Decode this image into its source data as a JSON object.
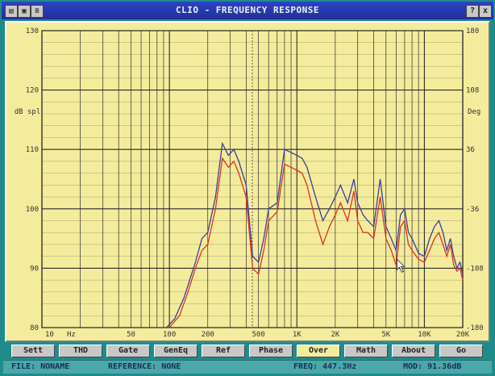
{
  "window": {
    "title": "CLIO - FREQUENCY RESPONSE",
    "title_icons": [
      "doc-icon",
      "save-icon",
      "menu-icon"
    ],
    "help_button": "?",
    "close_button": "x"
  },
  "toolbar": {
    "buttons": [
      {
        "label": "Sett",
        "active": false
      },
      {
        "label": "THD",
        "active": false
      },
      {
        "label": "Gate",
        "active": false
      },
      {
        "label": "GenEq",
        "active": false
      },
      {
        "label": "Ref",
        "active": false
      },
      {
        "label": "Phase",
        "active": false
      },
      {
        "label": "Over",
        "active": true
      },
      {
        "label": "Math",
        "active": false
      },
      {
        "label": "About",
        "active": false
      },
      {
        "label": "Go",
        "active": false
      }
    ]
  },
  "status": {
    "file": "FILE: NONAME",
    "reference": "REFERENCE: NONE",
    "freq": "FREQ: 447.3Hz",
    "mod": "MOD: 91.36dB"
  },
  "colors": {
    "plot_bg": "#f4ec9c",
    "grid": "#2a2a2a",
    "series_blue": "#3a3f9a",
    "series_red": "#e0301e",
    "cursor": "#555555"
  },
  "chart_data": {
    "type": "line",
    "xscale": "log",
    "xlim": [
      10,
      20000
    ],
    "ylim": [
      80,
      130
    ],
    "ylim_right": [
      -180,
      180
    ],
    "y_ticks": [
      "130",
      "120",
      "110",
      "100",
      "90",
      "80"
    ],
    "y_right_ticks": [
      "180",
      "108",
      "36",
      "-36",
      "-108",
      "-180"
    ],
    "x_ticks": [
      "10",
      "Hz",
      "50",
      "100",
      "200",
      "500",
      "1K",
      "2K",
      "5K",
      "10K",
      "20K"
    ],
    "ylabel": "dB spl",
    "ylabel_right": "Deg",
    "grid": true,
    "cursor_x": 447.3,
    "series": [
      {
        "color": "#3a3f9a",
        "x": [
          95,
          110,
          130,
          160,
          180,
          200,
          230,
          260,
          290,
          320,
          350,
          400,
          450,
          500,
          550,
          600,
          700,
          800,
          900,
          1000,
          1100,
          1200,
          1400,
          1600,
          1800,
          2000,
          2200,
          2500,
          2800,
          3000,
          3300,
          3600,
          4000,
          4500,
          5000,
          5500,
          6000,
          6500,
          7000,
          7500,
          8000,
          9000,
          10000,
          11000,
          12000,
          13000,
          14000,
          15000,
          16000,
          17000,
          18000,
          19000,
          20000
        ],
        "y": [
          80,
          81.5,
          85,
          91,
          95,
          96,
          102,
          111,
          109,
          110,
          108,
          104,
          92,
          91,
          95,
          100,
          101,
          110,
          109.5,
          109,
          108.5,
          107,
          102,
          98,
          100,
          102,
          104,
          101,
          105,
          101,
          99,
          98,
          97,
          105,
          97,
          95,
          93,
          99,
          100,
          96,
          95,
          92.5,
          92,
          95,
          97,
          98,
          96,
          93,
          95,
          92,
          90,
          91,
          89
        ]
      },
      {
        "color": "#e0301e",
        "x": [
          100,
          120,
          140,
          160,
          180,
          200,
          230,
          260,
          290,
          320,
          350,
          400,
          450,
          500,
          550,
          600,
          700,
          800,
          900,
          1000,
          1100,
          1200,
          1400,
          1600,
          1800,
          2000,
          2200,
          2500,
          2800,
          3000,
          3300,
          3600,
          4000,
          4500,
          5000,
          5500,
          6000,
          6500,
          7000,
          7500,
          8000,
          9000,
          10000,
          11000,
          12000,
          13000,
          14000,
          15000,
          16000,
          17000,
          18000,
          19000,
          20000
        ],
        "y": [
          80,
          82,
          86,
          90,
          93,
          94,
          100,
          108.5,
          107,
          108,
          106,
          102,
          90,
          89,
          93,
          98,
          99.5,
          107.5,
          107,
          106.5,
          106,
          104,
          98,
          94,
          97,
          99,
          101,
          98,
          103,
          98,
          96,
          96,
          95,
          102,
          95,
          93,
          90.5,
          97,
          98,
          94,
          93,
          91.5,
          91,
          93,
          95,
          96,
          94,
          92,
          94,
          90.5,
          89.5,
          90,
          88
        ]
      }
    ]
  }
}
